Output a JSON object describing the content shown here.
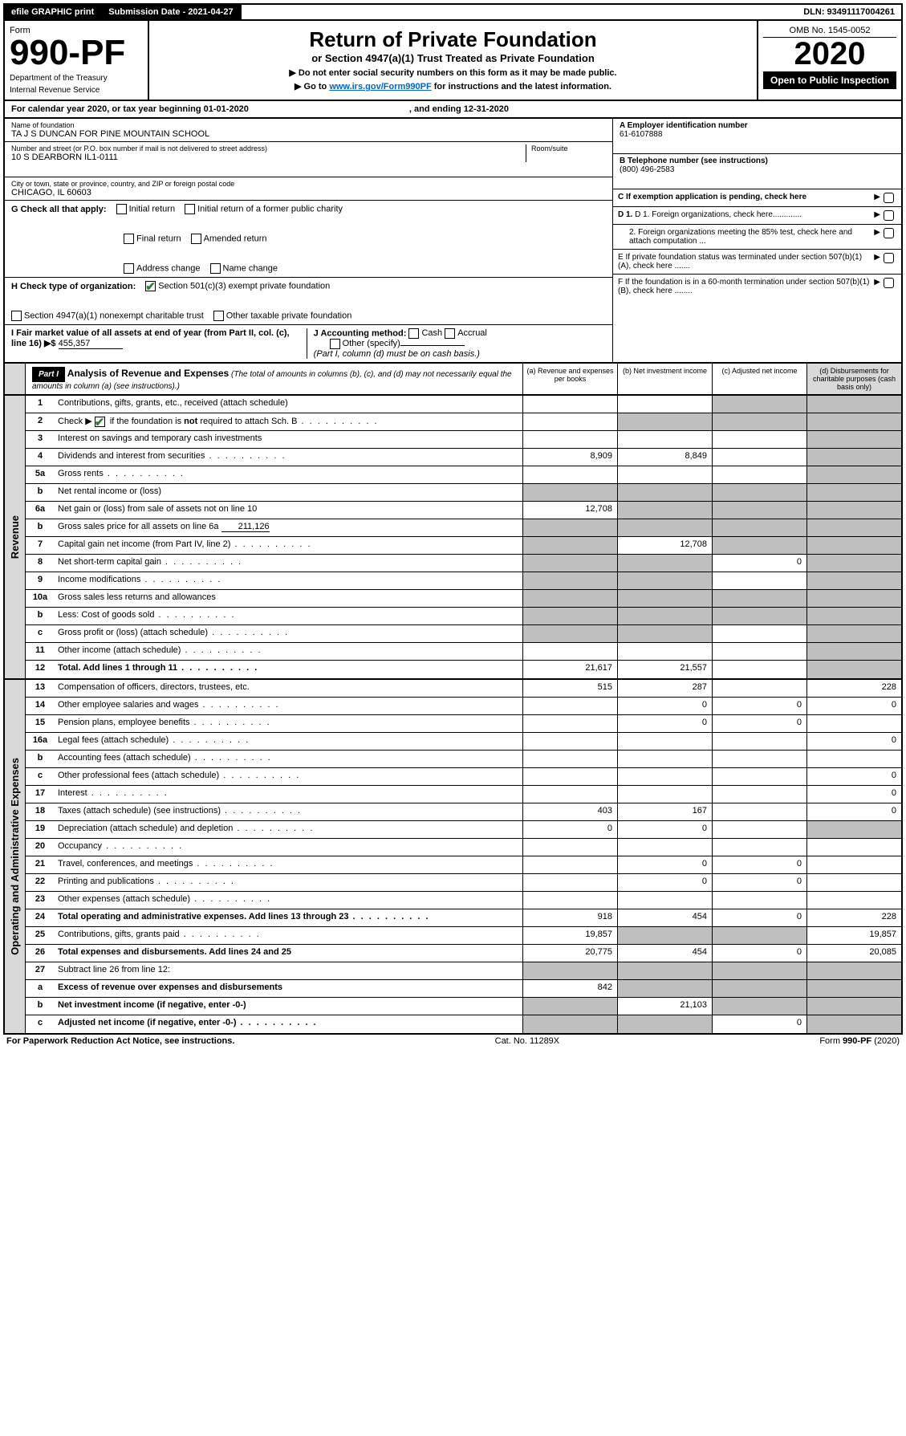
{
  "topbar": {
    "efile": "efile GRAPHIC print",
    "submission_label": "Submission Date - 2021-04-27",
    "dln": "DLN: 93491117004261"
  },
  "header": {
    "form_label": "Form",
    "form_number": "990-PF",
    "dept1": "Department of the Treasury",
    "dept2": "Internal Revenue Service",
    "title": "Return of Private Foundation",
    "subtitle": "or Section 4947(a)(1) Trust Treated as Private Foundation",
    "instr1": "▶ Do not enter social security numbers on this form as it may be made public.",
    "instr2_pre": "▶ Go to ",
    "instr2_link": "www.irs.gov/Form990PF",
    "instr2_post": " for instructions and the latest information.",
    "omb": "OMB No. 1545-0052",
    "year": "2020",
    "open_public": "Open to Public Inspection"
  },
  "cy": {
    "text": "For calendar year 2020, or tax year beginning 01-01-2020",
    "ending": ", and ending 12-31-2020"
  },
  "info": {
    "name_label": "Name of foundation",
    "name_val": "TA J S DUNCAN FOR PINE MOUNTAIN SCHOOL",
    "addr_label": "Number and street (or P.O. box number if mail is not delivered to street address)",
    "room_label": "Room/suite",
    "addr_val": "10 S DEARBORN IL1-0111",
    "city_label": "City or town, state or province, country, and ZIP or foreign postal code",
    "city_val": "CHICAGO, IL  60603",
    "a_label": "A Employer identification number",
    "a_val": "61-6107888",
    "b_label": "B Telephone number (see instructions)",
    "b_val": "(800) 496-2583",
    "c_label": "C If exemption application is pending, check here",
    "d1_label": "D 1. Foreign organizations, check here.............",
    "d2_label": "2. Foreign organizations meeting the 85% test, check here and attach computation ...",
    "e_label": "E  If private foundation status was terminated under section 507(b)(1)(A), check here .......",
    "f_label": "F  If the foundation is in a 60-month termination under section 507(b)(1)(B), check here ........"
  },
  "g": {
    "label": "G Check all that apply:",
    "opts": [
      "Initial return",
      "Initial return of a former public charity",
      "Final return",
      "Amended return",
      "Address change",
      "Name change"
    ]
  },
  "h": {
    "label": "H Check type of organization:",
    "opt1": "Section 501(c)(3) exempt private foundation",
    "opt2": "Section 4947(a)(1) nonexempt charitable trust",
    "opt3": "Other taxable private foundation"
  },
  "i": {
    "label": "I Fair market value of all assets at end of year (from Part II, col. (c), line 16) ▶$",
    "val": "455,357"
  },
  "j": {
    "label": "J Accounting method:",
    "cash": "Cash",
    "accrual": "Accrual",
    "other": "Other (specify)",
    "note": "(Part I, column (d) must be on cash basis.)"
  },
  "part1": {
    "badge": "Part I",
    "title": "Analysis of Revenue and Expenses",
    "desc": "(The total of amounts in columns (b), (c), and (d) may not necessarily equal the amounts in column (a) (see instructions).)",
    "col_a": "(a)   Revenue and expenses per books",
    "col_b": "(b)  Net investment income",
    "col_c": "(c)  Adjusted net income",
    "col_d": "(d)  Disbursements for charitable purposes (cash basis only)"
  },
  "revenue_label": "Revenue",
  "expenses_label": "Operating and Administrative Expenses",
  "rows_rev": [
    {
      "n": "1",
      "d": "Contributions, gifts, grants, etc., received (attach schedule)",
      "a": "",
      "b": "",
      "c": "s",
      "dd": "s"
    },
    {
      "n": "2",
      "d": "Check ▶ ✔ if the foundation is not required to attach Sch. B",
      "dots": true,
      "a": "",
      "b": "s",
      "c": "s",
      "dd": "s",
      "checked": true
    },
    {
      "n": "3",
      "d": "Interest on savings and temporary cash investments",
      "a": "",
      "b": "",
      "c": "",
      "dd": "s"
    },
    {
      "n": "4",
      "d": "Dividends and interest from securities",
      "dots": true,
      "a": "8,909",
      "b": "8,849",
      "c": "",
      "dd": "s"
    },
    {
      "n": "5a",
      "d": "Gross rents",
      "dots": true,
      "a": "",
      "b": "",
      "c": "",
      "dd": "s"
    },
    {
      "n": "b",
      "d": "Net rental income or (loss)",
      "inline": true,
      "a": "s",
      "b": "s",
      "c": "s",
      "dd": "s"
    },
    {
      "n": "6a",
      "d": "Net gain or (loss) from sale of assets not on line 10",
      "a": "12,708",
      "b": "s",
      "c": "s",
      "dd": "s"
    },
    {
      "n": "b",
      "d": "Gross sales price for all assets on line 6a",
      "inline_val": "211,126",
      "a": "s",
      "b": "s",
      "c": "s",
      "dd": "s"
    },
    {
      "n": "7",
      "d": "Capital gain net income (from Part IV, line 2)",
      "dots": true,
      "a": "s",
      "b": "12,708",
      "c": "s",
      "dd": "s"
    },
    {
      "n": "8",
      "d": "Net short-term capital gain",
      "dots": true,
      "a": "s",
      "b": "s",
      "c": "0",
      "dd": "s"
    },
    {
      "n": "9",
      "d": "Income modifications",
      "dots": true,
      "a": "s",
      "b": "s",
      "c": "",
      "dd": "s"
    },
    {
      "n": "10a",
      "d": "Gross sales less returns and allowances",
      "inline": true,
      "a": "s",
      "b": "s",
      "c": "s",
      "dd": "s"
    },
    {
      "n": "b",
      "d": "Less: Cost of goods sold",
      "dots": true,
      "inline": true,
      "a": "s",
      "b": "s",
      "c": "s",
      "dd": "s"
    },
    {
      "n": "c",
      "d": "Gross profit or (loss) (attach schedule)",
      "dots": true,
      "a": "s",
      "b": "s",
      "c": "",
      "dd": "s"
    },
    {
      "n": "11",
      "d": "Other income (attach schedule)",
      "dots": true,
      "a": "",
      "b": "",
      "c": "",
      "dd": "s"
    },
    {
      "n": "12",
      "d": "Total. Add lines 1 through 11",
      "bold": true,
      "dots": true,
      "a": "21,617",
      "b": "21,557",
      "c": "",
      "dd": "s"
    }
  ],
  "rows_exp": [
    {
      "n": "13",
      "d": "Compensation of officers, directors, trustees, etc.",
      "a": "515",
      "b": "287",
      "c": "",
      "dd": "228"
    },
    {
      "n": "14",
      "d": "Other employee salaries and wages",
      "dots": true,
      "a": "",
      "b": "0",
      "c": "0",
      "dd": "0"
    },
    {
      "n": "15",
      "d": "Pension plans, employee benefits",
      "dots": true,
      "a": "",
      "b": "0",
      "c": "0",
      "dd": ""
    },
    {
      "n": "16a",
      "d": "Legal fees (attach schedule)",
      "dots": true,
      "a": "",
      "b": "",
      "c": "",
      "dd": "0"
    },
    {
      "n": "b",
      "d": "Accounting fees (attach schedule)",
      "dots": true,
      "a": "",
      "b": "",
      "c": "",
      "dd": ""
    },
    {
      "n": "c",
      "d": "Other professional fees (attach schedule)",
      "dots": true,
      "a": "",
      "b": "",
      "c": "",
      "dd": "0"
    },
    {
      "n": "17",
      "d": "Interest",
      "dots": true,
      "a": "",
      "b": "",
      "c": "",
      "dd": "0"
    },
    {
      "n": "18",
      "d": "Taxes (attach schedule) (see instructions)",
      "dots": true,
      "a": "403",
      "b": "167",
      "c": "",
      "dd": "0"
    },
    {
      "n": "19",
      "d": "Depreciation (attach schedule) and depletion",
      "dots": true,
      "a": "0",
      "b": "0",
      "c": "",
      "dd": "s"
    },
    {
      "n": "20",
      "d": "Occupancy",
      "dots": true,
      "a": "",
      "b": "",
      "c": "",
      "dd": ""
    },
    {
      "n": "21",
      "d": "Travel, conferences, and meetings",
      "dots": true,
      "a": "",
      "b": "0",
      "c": "0",
      "dd": ""
    },
    {
      "n": "22",
      "d": "Printing and publications",
      "dots": true,
      "a": "",
      "b": "0",
      "c": "0",
      "dd": ""
    },
    {
      "n": "23",
      "d": "Other expenses (attach schedule)",
      "dots": true,
      "a": "",
      "b": "",
      "c": "",
      "dd": ""
    },
    {
      "n": "24",
      "d": "Total operating and administrative expenses. Add lines 13 through 23",
      "bold": true,
      "dots": true,
      "a": "918",
      "b": "454",
      "c": "0",
      "dd": "228"
    },
    {
      "n": "25",
      "d": "Contributions, gifts, grants paid",
      "dots": true,
      "a": "19,857",
      "b": "s",
      "c": "s",
      "dd": "19,857"
    },
    {
      "n": "26",
      "d": "Total expenses and disbursements. Add lines 24 and 25",
      "bold": true,
      "a": "20,775",
      "b": "454",
      "c": "0",
      "dd": "20,085"
    },
    {
      "n": "27",
      "d": "Subtract line 26 from line 12:",
      "a": "s",
      "b": "s",
      "c": "s",
      "dd": "s"
    },
    {
      "n": "a",
      "d": "Excess of revenue over expenses and disbursements",
      "bold": true,
      "a": "842",
      "b": "s",
      "c": "s",
      "dd": "s"
    },
    {
      "n": "b",
      "d": "Net investment income (if negative, enter -0-)",
      "bold": true,
      "a": "s",
      "b": "21,103",
      "c": "s",
      "dd": "s"
    },
    {
      "n": "c",
      "d": "Adjusted net income (if negative, enter -0-)",
      "bold": true,
      "dots": true,
      "a": "s",
      "b": "s",
      "c": "0",
      "dd": "s"
    }
  ],
  "footer": {
    "left": "For Paperwork Reduction Act Notice, see instructions.",
    "cat": "Cat. No. 11289X",
    "form": "Form 990-PF (2020)"
  }
}
